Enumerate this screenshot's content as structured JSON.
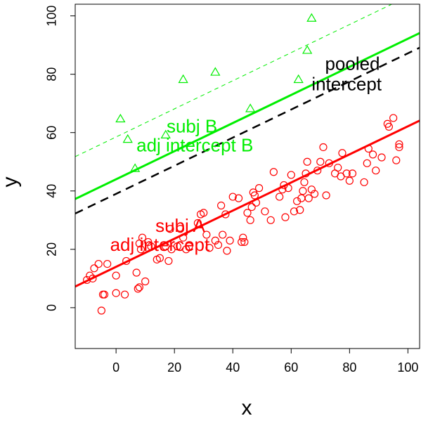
{
  "chart_data": {
    "type": "scatter",
    "title": "",
    "xlabel": "x",
    "ylabel": "y",
    "xlim": [
      -14,
      104
    ],
    "ylim": [
      -14,
      104
    ],
    "x_ticks": [
      0,
      20,
      40,
      60,
      80,
      100
    ],
    "y_ticks": [
      0,
      20,
      40,
      60,
      80,
      100
    ],
    "x_tick_labels": [
      "0",
      "20",
      "40",
      "60",
      "80",
      "100"
    ],
    "y_tick_labels": [
      "0",
      "20",
      "40",
      "60",
      "80",
      "100"
    ],
    "grid": false,
    "legend": "none",
    "colors": {
      "subject_a": "#ff0000",
      "subject_b": "#00ee00",
      "pooled": "#000000"
    },
    "series": [
      {
        "marker": "circle",
        "color": "#ff0000",
        "points": [
          [
            -10,
            9.5
          ],
          [
            -9,
            11
          ],
          [
            -8,
            10
          ],
          [
            -7.5,
            13.5
          ],
          [
            -6,
            15
          ],
          [
            -5,
            -1
          ],
          [
            -4.5,
            4.5
          ],
          [
            -4,
            4.5
          ],
          [
            -3,
            15
          ],
          [
            0,
            11
          ],
          [
            0,
            5
          ],
          [
            3,
            4.5
          ],
          [
            3.5,
            16
          ],
          [
            7,
            12
          ],
          [
            7.5,
            6.5
          ],
          [
            8,
            7
          ],
          [
            8,
            22
          ],
          [
            8.5,
            20
          ],
          [
            9,
            24
          ],
          [
            10,
            9
          ],
          [
            11,
            22.5
          ],
          [
            12,
            21
          ],
          [
            14,
            16.5
          ],
          [
            15,
            17
          ],
          [
            17,
            21
          ],
          [
            18,
            16
          ],
          [
            18.5,
            27
          ],
          [
            19,
            20
          ],
          [
            21,
            21
          ],
          [
            22,
            27
          ],
          [
            23,
            24
          ],
          [
            24,
            20
          ],
          [
            25,
            21
          ],
          [
            28,
            29
          ],
          [
            29,
            32
          ],
          [
            30,
            32.5
          ],
          [
            31,
            25
          ],
          [
            32,
            20.5
          ],
          [
            34,
            23
          ],
          [
            35,
            21.5
          ],
          [
            36,
            35
          ],
          [
            36.5,
            25
          ],
          [
            37.5,
            32
          ],
          [
            38,
            19.5
          ],
          [
            39,
            23
          ],
          [
            40,
            38
          ],
          [
            42,
            37.5
          ],
          [
            43,
            22.5
          ],
          [
            43.5,
            24
          ],
          [
            44,
            22.5
          ],
          [
            45,
            32.5
          ],
          [
            46,
            30
          ],
          [
            46.5,
            34.5
          ],
          [
            47,
            39.5
          ],
          [
            47.5,
            38.5
          ],
          [
            48,
            36
          ],
          [
            49,
            41
          ],
          [
            51,
            33
          ],
          [
            53,
            30
          ],
          [
            54,
            46.5
          ],
          [
            56,
            38
          ],
          [
            57,
            40.5
          ],
          [
            57.5,
            42
          ],
          [
            58,
            31
          ],
          [
            59,
            41
          ],
          [
            60,
            45.5
          ],
          [
            61,
            33
          ],
          [
            62,
            36.5
          ],
          [
            63,
            33.5
          ],
          [
            63.5,
            37.5
          ],
          [
            64,
            40
          ],
          [
            64.5,
            43
          ],
          [
            65,
            46
          ],
          [
            65.5,
            50
          ],
          [
            66,
            37.5
          ],
          [
            67,
            40.5
          ],
          [
            68,
            39
          ],
          [
            69,
            47
          ],
          [
            70,
            50
          ],
          [
            71,
            55
          ],
          [
            72,
            38.5
          ],
          [
            73,
            49.5
          ],
          [
            75,
            46
          ],
          [
            76,
            48
          ],
          [
            77,
            45
          ],
          [
            77.5,
            53
          ],
          [
            79,
            46
          ],
          [
            80,
            43.5
          ],
          [
            81,
            46
          ],
          [
            85,
            43
          ],
          [
            86,
            49.5
          ],
          [
            86.5,
            54.5
          ],
          [
            88,
            52.5
          ],
          [
            89,
            47
          ],
          [
            91,
            51.5
          ],
          [
            93,
            63
          ],
          [
            93.5,
            62
          ],
          [
            95,
            65
          ],
          [
            96,
            50.5
          ],
          [
            97,
            56
          ],
          [
            97,
            55
          ]
        ]
      },
      {
        "marker": "triangle",
        "color": "#00ee00",
        "points": [
          [
            1.5,
            64.5
          ],
          [
            4,
            57.5
          ],
          [
            6.5,
            47.5
          ],
          [
            17,
            59
          ],
          [
            23,
            78
          ],
          [
            34,
            80.5
          ],
          [
            46,
            68
          ],
          [
            62.5,
            78
          ],
          [
            65.5,
            88
          ],
          [
            67,
            99
          ]
        ]
      }
    ],
    "lines": [
      {
        "color": "#000000",
        "style": "dashed",
        "width": 2.5,
        "intercept": 39,
        "slope": 0.4817
      },
      {
        "color": "#00ee00",
        "style": "solid",
        "width": 3,
        "intercept": 44,
        "slope": 0.4817
      },
      {
        "color": "#00ee00",
        "style": "dashed-thin",
        "width": 1,
        "intercept": 58.5,
        "slope": 0.4817
      },
      {
        "color": "#ff0000",
        "style": "solid",
        "width": 3,
        "intercept": 14,
        "slope": 0.4817
      }
    ],
    "annotations": [
      {
        "text": "pooled",
        "x": 81,
        "y": 81.5,
        "color": "#000000"
      },
      {
        "text": "intercept",
        "x": 79,
        "y": 74.5,
        "color": "#000000"
      },
      {
        "text": "subj B",
        "x": 26,
        "y": 60,
        "color": "#00ee00"
      },
      {
        "text": "adj intercept B",
        "x": 27,
        "y": 53.5,
        "color": "#00ee00"
      },
      {
        "text": "subj A",
        "x": 22,
        "y": 26,
        "color": "#ff0000"
      },
      {
        "text": "adj intercept",
        "x": 15,
        "y": 19.5,
        "color": "#ff0000"
      }
    ]
  }
}
